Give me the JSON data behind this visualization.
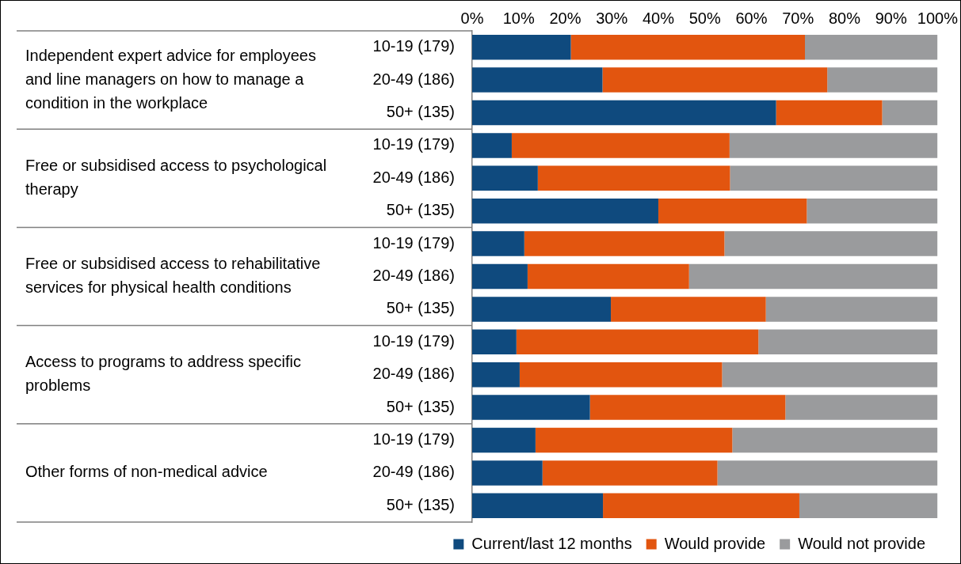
{
  "chart_data": {
    "type": "bar",
    "orientation": "horizontal",
    "stacked": true,
    "grid": false,
    "legend": "bottom right",
    "categories": [
      "10-19 (179)",
      "20-49 (186)",
      "50+ (135)",
      "10-19 (179)",
      "20-49 (186)",
      "50+ (135)",
      "10-19 (179)",
      "20-49 (186)",
      "50+ (135)",
      "10-19 (179)",
      "20-49 (186)",
      "50+ (135)",
      "10-19 (179)",
      "20-49 (186)",
      "50+ (135)"
    ],
    "annotations": [
      "Independent expert advice for employees and line managers on how to manage a condition in the workplace",
      "Free or subsidised access to psychological therapy",
      "Free or subsidised access to rehabilitative  services for physical health conditions",
      "Access to programs to address specific problems",
      "Other forms of non-medical advice"
    ],
    "xlim": [
      0,
      100
    ],
    "xticks": [
      {
        "value": 0,
        "label": "0%"
      },
      {
        "value": 10,
        "label": "10%"
      },
      {
        "value": 20,
        "label": "20%"
      },
      {
        "value": 30,
        "label": "30%"
      },
      {
        "value": 40,
        "label": "40%"
      },
      {
        "value": 50,
        "label": "50%"
      },
      {
        "value": 60,
        "label": "60%"
      },
      {
        "value": 70,
        "label": "70%"
      },
      {
        "value": 80,
        "label": "80%"
      },
      {
        "value": 90,
        "label": "90%"
      },
      {
        "value": 100,
        "label": "100%"
      }
    ],
    "series": [
      {
        "name": "Current/last 12 months",
        "color": "#0f4a7e",
        "values": [
          21.2,
          28.0,
          65.3,
          8.5,
          14.1,
          40.0,
          11.2,
          11.9,
          29.8,
          9.5,
          10.2,
          25.3,
          13.6,
          15.1,
          28.1
        ]
      },
      {
        "name": "Would provide",
        "color": "#e2550f",
        "values": [
          50.3,
          48.3,
          22.8,
          46.8,
          41.3,
          31.9,
          43.0,
          34.7,
          33.3,
          52.0,
          43.5,
          42.0,
          42.3,
          37.6,
          42.2
        ]
      },
      {
        "name": "Would not provide",
        "color": "#9a9b9d",
        "values": [
          28.5,
          23.7,
          11.9,
          44.7,
          44.6,
          28.1,
          45.8,
          53.4,
          36.9,
          38.5,
          46.3,
          32.7,
          44.1,
          47.3,
          29.7
        ]
      }
    ]
  }
}
